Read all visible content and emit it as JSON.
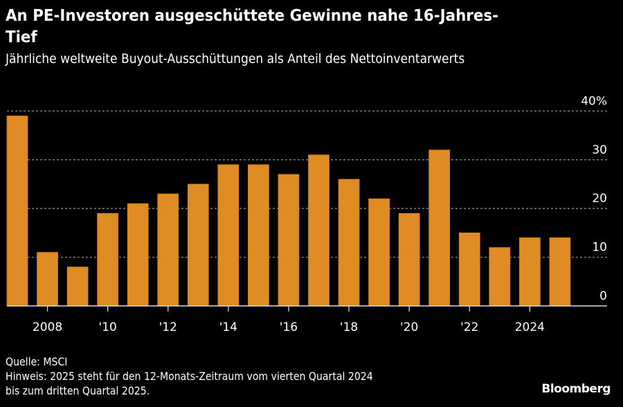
{
  "chart_data": {
    "type": "bar",
    "title": "An PE-Investoren ausgeschüttete Gewinne nahe 16-Jahres-Tief",
    "subtitle": "Jährliche weltweite Buyout-Ausschüttungen als Anteil des Nettoinventarwerts",
    "categories": [
      "2007",
      "2008",
      "2009",
      "2010",
      "2011",
      "2012",
      "2013",
      "2014",
      "2015",
      "2016",
      "2017",
      "2018",
      "2019",
      "2020",
      "2021",
      "2022",
      "2023",
      "2024",
      "2025"
    ],
    "values": [
      39,
      11,
      8,
      19,
      21,
      23,
      25,
      29,
      29,
      27,
      31,
      26,
      22,
      19,
      32,
      15,
      12,
      14,
      14
    ],
    "x_tick_labels": [
      {
        "year": "2008",
        "label": "2008"
      },
      {
        "year": "2010",
        "label": "'10"
      },
      {
        "year": "2012",
        "label": "'12"
      },
      {
        "year": "2014",
        "label": "'14"
      },
      {
        "year": "2016",
        "label": "'16"
      },
      {
        "year": "2018",
        "label": "'18"
      },
      {
        "year": "2020",
        "label": "'20"
      },
      {
        "year": "2022",
        "label": "'22"
      },
      {
        "year": "2024",
        "label": "2024"
      }
    ],
    "y_ticks": [
      0,
      10,
      20,
      30,
      40
    ],
    "y_tick_labels": [
      "0",
      "10",
      "20",
      "30",
      "40%"
    ],
    "ylim": [
      0,
      40
    ],
    "xlabel": "",
    "ylabel": "",
    "grid": true,
    "y_axis_position": "right",
    "bar_color": "#e08c24",
    "gridline_color": "#8a8a8a"
  },
  "footer": {
    "source": "Quelle: MSCI",
    "note_line1": "Hinweis: 2025 steht für den 12-Monats-Zeitraum vom vierten Quartal 2024",
    "note_line2": "bis zum dritten Quartal 2025."
  },
  "brand": "Bloomberg"
}
